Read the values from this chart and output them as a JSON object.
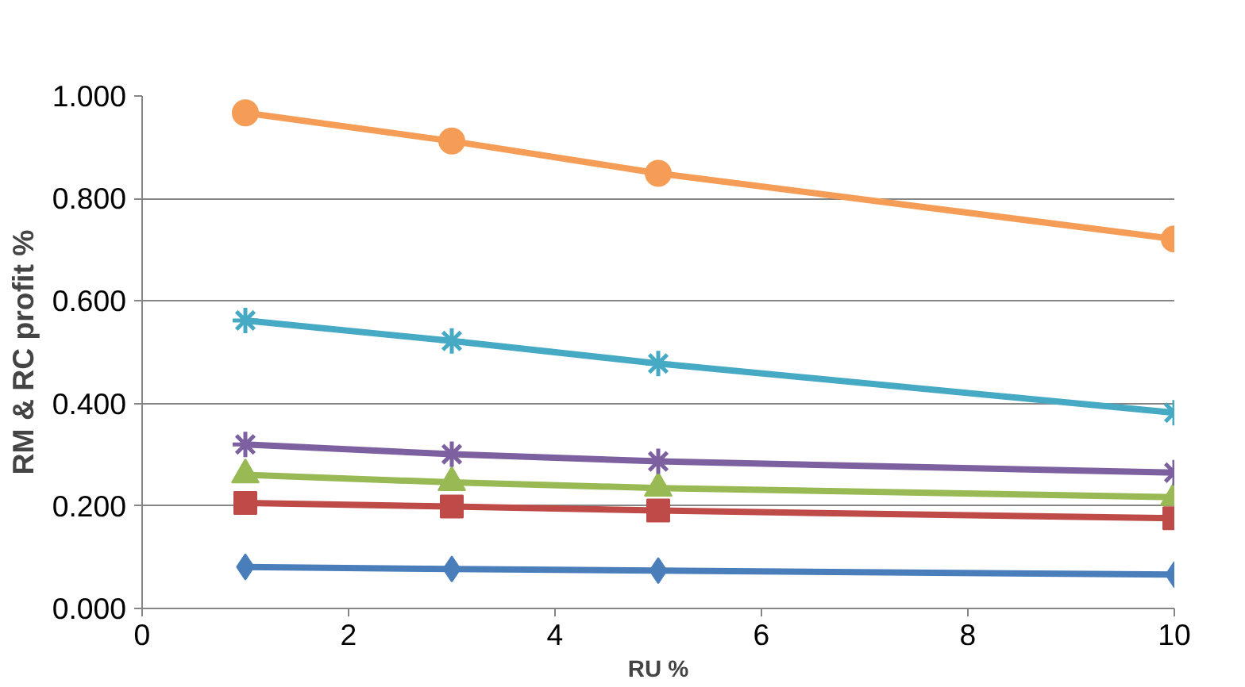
{
  "chart_data": {
    "type": "line",
    "xlabel": "RU %",
    "ylabel": "RM & RC profit %",
    "x": [
      1,
      3,
      5,
      10
    ],
    "series": [
      {
        "color": "#4a7ebb",
        "marker": "diamond",
        "values": [
          0.081,
          0.077,
          0.074,
          0.066
        ]
      },
      {
        "color": "#be4b48",
        "marker": "square",
        "values": [
          0.206,
          0.199,
          0.191,
          0.176
        ]
      },
      {
        "color": "#98b954",
        "marker": "triangle",
        "values": [
          0.261,
          0.246,
          0.235,
          0.217
        ]
      },
      {
        "color": "#7d60a0",
        "marker": "cross",
        "values": [
          0.32,
          0.301,
          0.287,
          0.265
        ]
      },
      {
        "color": "#46aac5",
        "marker": "cross",
        "values": [
          0.562,
          0.522,
          0.478,
          0.382
        ]
      },
      {
        "color": "#f59d56",
        "marker": "circle",
        "values": [
          0.967,
          0.912,
          0.849,
          0.721
        ]
      }
    ],
    "xlim": [
      0,
      10
    ],
    "xticks": [
      0,
      2,
      4,
      6,
      8,
      10
    ],
    "ylim": [
      0,
      1.0
    ],
    "yticks": [
      {
        "value": 0,
        "label": "0.000"
      },
      {
        "value": 0.2,
        "label": "0.200"
      },
      {
        "value": 0.4,
        "label": "0.400"
      },
      {
        "value": 0.6,
        "label": "0.600"
      },
      {
        "value": 0.8,
        "label": "0.800"
      },
      {
        "value": 1.0,
        "label": "1.000"
      }
    ],
    "grid": "y",
    "line_style": "solid"
  }
}
